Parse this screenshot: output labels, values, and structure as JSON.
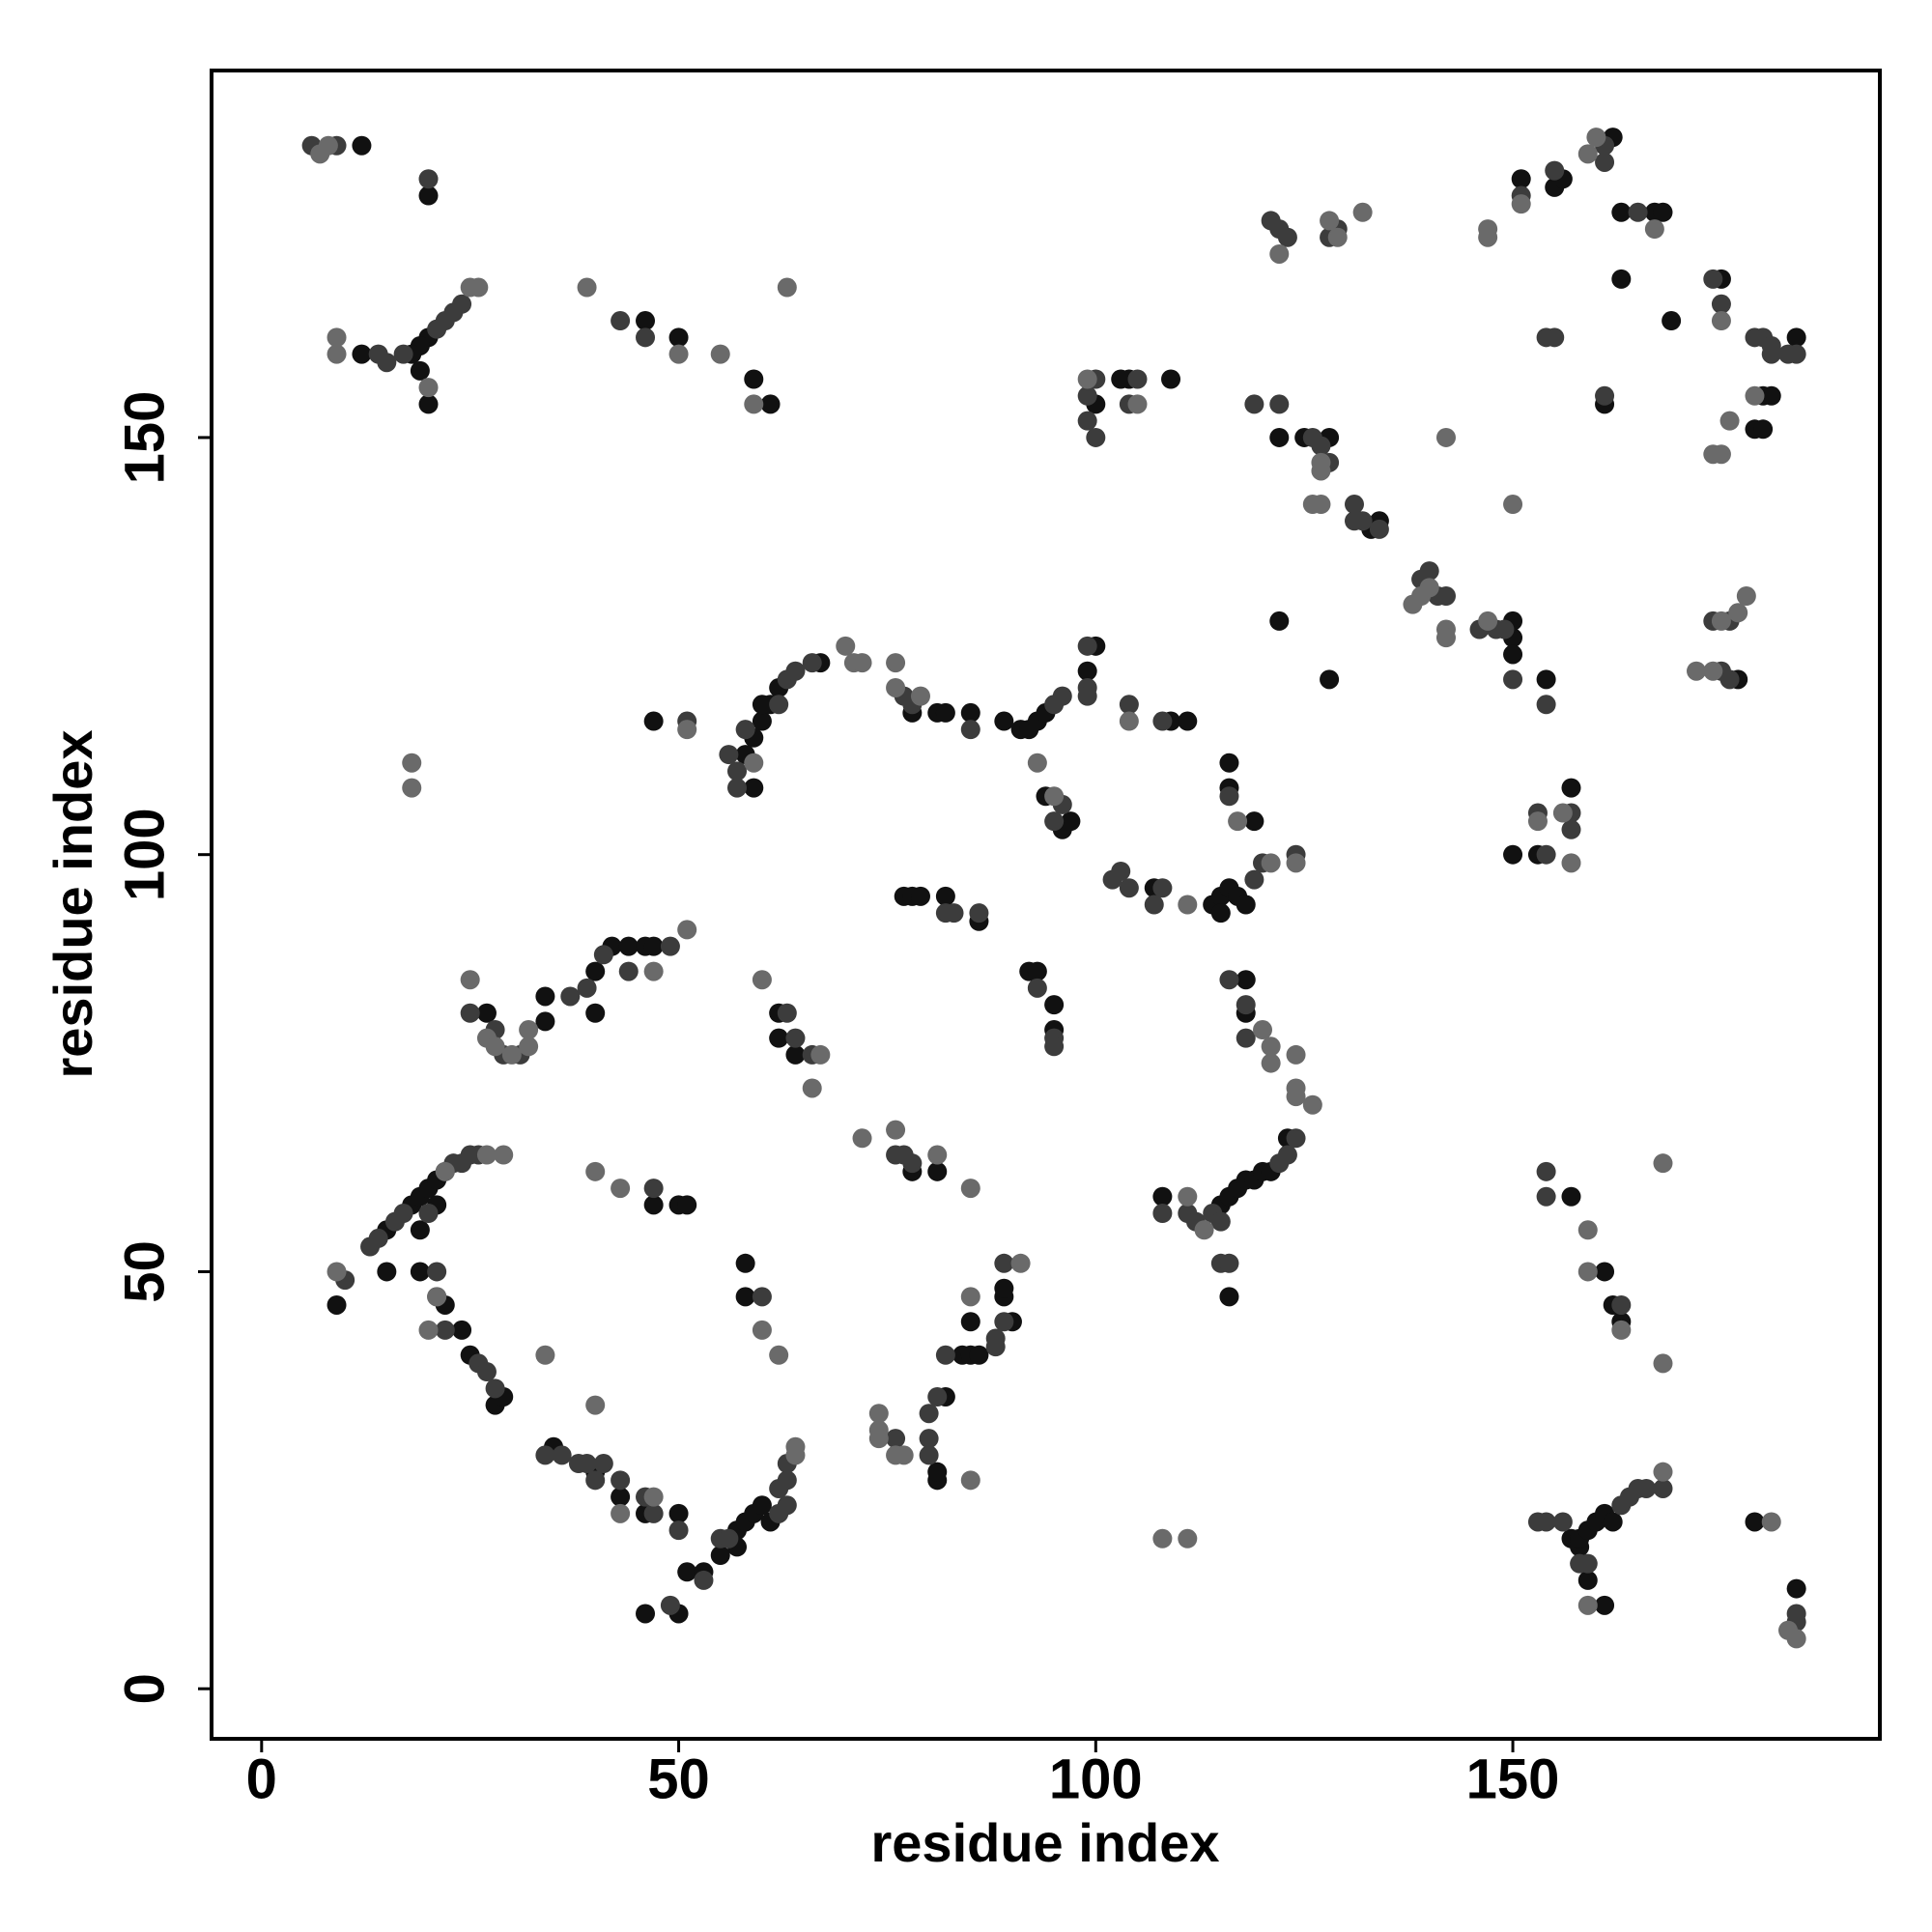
{
  "chart_data": {
    "type": "scatter",
    "x_label": "residue index",
    "y_label": "residue index",
    "xlim": [
      -6,
      194
    ],
    "ylim": [
      -6,
      194
    ],
    "xticks": [
      0,
      50,
      100,
      150
    ],
    "yticks": [
      0,
      50,
      100,
      150
    ],
    "series": [
      {
        "color": "#111111",
        "x": [
          12,
          20,
          20,
          19,
          18,
          19,
          20,
          12,
          46,
          50,
          59,
          61,
          27,
          34,
          34,
          40,
          42,
          44,
          46,
          47,
          40,
          9,
          15,
          18,
          19,
          20,
          21,
          22,
          19,
          21,
          19,
          22,
          24,
          25,
          28,
          29,
          15,
          47,
          50,
          51,
          58,
          58,
          35,
          40,
          43,
          46,
          50,
          51,
          46,
          50,
          53,
          55,
          57,
          58,
          59,
          60,
          57,
          61,
          58,
          59,
          60,
          61,
          62,
          59,
          47,
          60,
          67,
          78,
          81,
          82,
          85,
          89,
          91,
          92,
          93,
          94,
          99,
          100,
          94,
          96,
          97,
          109,
          111,
          77,
          78,
          79,
          82,
          86,
          92,
          93,
          95,
          95,
          62,
          62,
          64,
          78,
          81,
          81,
          81,
          82,
          84,
          85,
          86,
          85,
          89,
          89,
          90,
          108,
          115,
          116,
          117,
          118,
          119,
          120,
          121,
          123,
          116,
          114,
          115,
          115,
          116,
          117,
          118,
          116,
          116,
          119,
          118,
          118,
          107,
          100,
          104,
          109,
          103,
          122,
          125,
          128,
          133,
          134,
          128,
          122,
          151,
          155,
          156,
          162,
          163,
          167,
          168,
          163,
          169,
          175,
          180,
          181,
          179,
          180,
          184,
          161,
          150,
          150,
          154,
          150,
          177,
          157,
          150,
          153,
          157,
          161,
          162,
          163,
          157,
          158,
          158,
          159,
          160,
          161,
          162,
          159,
          161,
          179,
          184
        ],
        "y": [
          185,
          179,
          162,
          161,
          160,
          158,
          154,
          160,
          164,
          162,
          157,
          154,
          81,
          80,
          83,
          86,
          89,
          89,
          89,
          89,
          81,
          46,
          55,
          58,
          59,
          60,
          61,
          62,
          55,
          58,
          50,
          46,
          43,
          40,
          34,
          35,
          50,
          58,
          58,
          58,
          51,
          47,
          29,
          26,
          23,
          21,
          21,
          14,
          9,
          9,
          14,
          16,
          19,
          20,
          21,
          22,
          17,
          20,
          112,
          114,
          116,
          118,
          120,
          108,
          116,
          118,
          123,
          117,
          117,
          117,
          117,
          116,
          115,
          115,
          116,
          117,
          122,
          125,
          107,
          103,
          104,
          116,
          116,
          95,
          95,
          95,
          95,
          92,
          86,
          86,
          79,
          82,
          81,
          78,
          76,
          62,
          62,
          25,
          26,
          35,
          40,
          40,
          40,
          44,
          47,
          48,
          44,
          59,
          58,
          59,
          60,
          61,
          61,
          62,
          62,
          66,
          47,
          94,
          95,
          93,
          96,
          95,
          94,
          111,
          108,
          104,
          85,
          81,
          96,
          154,
          157,
          157,
          157,
          150,
          150,
          150,
          139,
          140,
          121,
          128,
          181,
          180,
          181,
          186,
          177,
          177,
          177,
          169,
          164,
          169,
          155,
          155,
          151,
          151,
          162,
          154,
          126,
          124,
          121,
          128,
          121,
          108,
          100,
          100,
          59,
          50,
          46,
          44,
          18,
          17,
          18,
          19,
          20,
          21,
          20,
          13,
          10,
          20,
          12
        ]
      },
      {
        "color": "#3c3c3c",
        "x": [
          6,
          9,
          21,
          22,
          23,
          24,
          17,
          14,
          15,
          43,
          46,
          20,
          25,
          28,
          29,
          31,
          37,
          39,
          41,
          44,
          49,
          10,
          13,
          14,
          16,
          17,
          23,
          24,
          25,
          26,
          20,
          21,
          21,
          22,
          26,
          27,
          28,
          47,
          60,
          34,
          36,
          38,
          39,
          41,
          40,
          43,
          46,
          47,
          50,
          49,
          53,
          55,
          56,
          62,
          63,
          63,
          62,
          63,
          57,
          63,
          64,
          66,
          56,
          57,
          51,
          58,
          62,
          77,
          78,
          85,
          95,
          96,
          99,
          99,
          99,
          95,
          96,
          104,
          108,
          83,
          86,
          82,
          93,
          95,
          95,
          63,
          64,
          66,
          76,
          77,
          78,
          76,
          80,
          80,
          80,
          81,
          82,
          88,
          88,
          89,
          89,
          108,
          111,
          112,
          114,
          115,
          122,
          123,
          124,
          115,
          116,
          119,
          120,
          124,
          102,
          103,
          104,
          108,
          107,
          116,
          116,
          118,
          118,
          99,
          100,
          99,
          100,
          104,
          105,
          119,
          122,
          126,
          127,
          128,
          131,
          131,
          132,
          134,
          121,
          122,
          123,
          129,
          128,
          151,
          155,
          161,
          161,
          165,
          174,
          175,
          179,
          180,
          181,
          181,
          183,
          184,
          154,
          155,
          161,
          139,
          140,
          141,
          142,
          146,
          148,
          149,
          150,
          154,
          174,
          175,
          176,
          176,
          153,
          157,
          157,
          154,
          154,
          154,
          163,
          153,
          154,
          156,
          163,
          164,
          165,
          166,
          168,
          159,
          158,
          184,
          184
        ],
        "y": [
          185,
          185,
          163,
          164,
          165,
          166,
          160,
          160,
          159,
          164,
          162,
          181,
          81,
          79,
          76,
          76,
          83,
          84,
          88,
          86,
          89,
          49,
          53,
          54,
          56,
          57,
          63,
          63,
          64,
          64,
          57,
          50,
          47,
          43,
          39,
          38,
          36,
          60,
          47,
          28,
          28,
          27,
          27,
          27,
          25,
          25,
          23,
          21,
          19,
          10,
          13,
          18,
          18,
          24,
          25,
          27,
          21,
          22,
          110,
          121,
          122,
          123,
          112,
          108,
          116,
          115,
          118,
          119,
          118,
          115,
          118,
          119,
          120,
          125,
          119,
          104,
          106,
          118,
          116,
          93,
          93,
          93,
          84,
          78,
          77,
          81,
          78,
          76,
          64,
          64,
          63,
          30,
          30,
          28,
          33,
          35,
          40,
          41,
          42,
          44,
          51,
          57,
          57,
          56,
          57,
          56,
          63,
          64,
          66,
          51,
          51,
          97,
          99,
          100,
          97,
          98,
          96,
          96,
          94,
          107,
          85,
          82,
          78,
          155,
          157,
          152,
          150,
          154,
          157,
          154,
          154,
          150,
          149,
          147,
          142,
          140,
          140,
          139,
          176,
          175,
          174,
          175,
          174,
          179,
          182,
          185,
          183,
          177,
          169,
          166,
          162,
          162,
          161,
          160,
          160,
          160,
          162,
          162,
          155,
          133,
          134,
          131,
          131,
          127,
          127,
          127,
          121,
          118,
          128,
          122,
          121,
          128,
          105,
          103,
          105,
          100,
          62,
          59,
          46,
          20,
          20,
          20,
          22,
          23,
          24,
          24,
          24,
          15,
          15,
          8,
          9
        ]
      },
      {
        "color": "#6a6a6a",
        "x": [
          7,
          8,
          20,
          9,
          9,
          25,
          26,
          39,
          50,
          55,
          59,
          63,
          18,
          18,
          25,
          27,
          28,
          30,
          32,
          32,
          47,
          51,
          9,
          27,
          29,
          22,
          21,
          20,
          40,
          43,
          60,
          62,
          34,
          40,
          43,
          47,
          64,
          64,
          70,
          71,
          72,
          59,
          51,
          76,
          76,
          79,
          93,
          95,
          104,
          60,
          66,
          67,
          72,
          76,
          81,
          85,
          74,
          74,
          74,
          76,
          77,
          85,
          85,
          91,
          108,
          111,
          111,
          113,
          124,
          124,
          126,
          121,
          124,
          111,
          117,
          120,
          121,
          121,
          124,
          99,
          105,
          127,
          127,
          126,
          127,
          142,
          150,
          122,
          128,
          129,
          132,
          147,
          147,
          151,
          159,
          160,
          167,
          175,
          176,
          174,
          175,
          179,
          138,
          139,
          142,
          142,
          140,
          147,
          177,
          178,
          174,
          172,
          175,
          153,
          156,
          157,
          159,
          159,
          163,
          168,
          168,
          168,
          159,
          181,
          183,
          184
        ],
        "y": [
          184,
          185,
          156,
          162,
          160,
          168,
          168,
          168,
          160,
          160,
          154,
          168,
          111,
          108,
          85,
          78,
          77,
          76,
          77,
          79,
          86,
          91,
          50,
          64,
          64,
          62,
          47,
          43,
          62,
          60,
          43,
          40,
          40,
          34,
          21,
          23,
          28,
          29,
          125,
          123,
          123,
          111,
          115,
          123,
          120,
          119,
          111,
          107,
          116,
          85,
          72,
          76,
          66,
          67,
          64,
          60,
          33,
          31,
          30,
          28,
          28,
          25,
          47,
          51,
          18,
          18,
          59,
          55,
          72,
          71,
          70,
          99,
          99,
          94,
          104,
          79,
          77,
          75,
          76,
          157,
          154,
          147,
          146,
          142,
          142,
          150,
          142,
          172,
          176,
          174,
          177,
          175,
          174,
          178,
          184,
          186,
          175,
          164,
          152,
          148,
          148,
          155,
          130,
          131,
          127,
          126,
          132,
          128,
          129,
          131,
          122,
          122,
          128,
          104,
          105,
          99,
          55,
          50,
          43,
          39,
          63,
          26,
          10,
          20,
          7,
          6
        ]
      }
    ]
  }
}
